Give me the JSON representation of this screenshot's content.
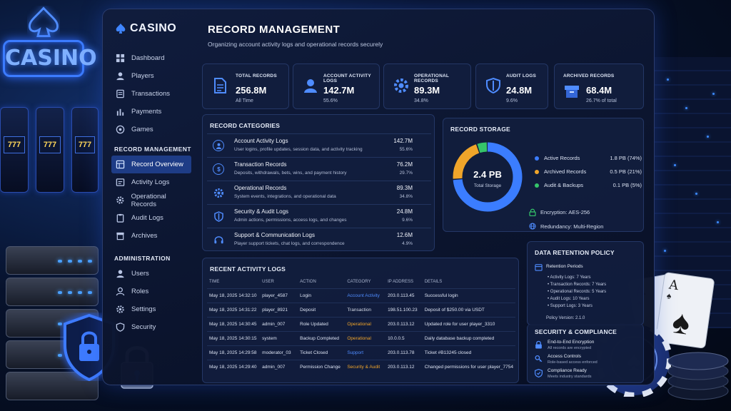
{
  "background": {
    "sign_text": "CASINO",
    "slot_text": "777"
  },
  "brand": {
    "name": "CASINO"
  },
  "sidebar": {
    "main_items": [
      {
        "label": "Dashboard",
        "icon": "dashboard-icon"
      },
      {
        "label": "Players",
        "icon": "user-icon"
      },
      {
        "label": "Transactions",
        "icon": "transactions-icon"
      },
      {
        "label": "Payments",
        "icon": "payments-icon"
      },
      {
        "label": "Games",
        "icon": "games-icon"
      }
    ],
    "record_section": "RECORD MANAGEMENT",
    "record_items": [
      {
        "label": "Record Overview",
        "icon": "grid-icon",
        "active": true
      },
      {
        "label": "Activity Logs",
        "icon": "activity-icon"
      },
      {
        "label": "Operational Records",
        "icon": "gear-icon"
      },
      {
        "label": "Audit Logs",
        "icon": "clipboard-icon"
      },
      {
        "label": "Archives",
        "icon": "archive-icon"
      }
    ],
    "admin_section": "ADMINISTRATION",
    "admin_items": [
      {
        "label": "Users",
        "icon": "user-icon"
      },
      {
        "label": "Roles",
        "icon": "roles-icon"
      },
      {
        "label": "Settings",
        "icon": "gear-icon"
      },
      {
        "label": "Security",
        "icon": "shield-icon"
      }
    ]
  },
  "header": {
    "title": "RECORD MANAGEMENT",
    "subtitle": "Organizing account activity logs and operational records securely"
  },
  "stats": [
    {
      "label": "TOTAL RECORDS",
      "value": "256.8M",
      "sub": "All Time"
    },
    {
      "label": "ACCOUNT ACTIVITY LOGS",
      "value": "142.7M",
      "sub": "55.6%"
    },
    {
      "label": "OPERATIONAL RECORDS",
      "value": "89.3M",
      "sub": "34.8%"
    },
    {
      "label": "AUDIT LOGS",
      "value": "24.8M",
      "sub": "9.6%"
    },
    {
      "label": "ARCHIVED RECORDS",
      "value": "68.4M",
      "sub": "26.7% of total"
    }
  ],
  "categories": {
    "title": "RECORD CATEGORIES",
    "items": [
      {
        "name": "Account Activity Logs",
        "desc": "User logins, profile updates, session data, and activity tracking",
        "value": "142.7M",
        "pct": "55.6%"
      },
      {
        "name": "Transaction Records",
        "desc": "Deposits, withdrawals, bets, wins, and payment history",
        "value": "76.2M",
        "pct": "29.7%"
      },
      {
        "name": "Operational Records",
        "desc": "System events, integrations, and operational data",
        "value": "89.3M",
        "pct": "34.8%"
      },
      {
        "name": "Security & Audit Logs",
        "desc": "Admin actions, permissions, access logs, and changes",
        "value": "24.8M",
        "pct": "9.6%"
      },
      {
        "name": "Support & Communication Logs",
        "desc": "Player support tickets, chat logs, and correspondence",
        "value": "12.6M",
        "pct": "4.9%"
      }
    ]
  },
  "storage": {
    "title": "RECORD STORAGE",
    "total": "2.4 PB",
    "total_label": "Total Storage",
    "segments": [
      {
        "label": "Active Records",
        "value": "1.8 PB (74%)",
        "fraction": 0.74,
        "color": "#3b7dff"
      },
      {
        "label": "Archived Records",
        "value": "0.5 PB (21%)",
        "fraction": 0.21,
        "color": "#f0a52a"
      },
      {
        "label": "Audit & Backups",
        "value": "0.1 PB (5%)",
        "fraction": 0.05,
        "color": "#35c46a"
      }
    ],
    "encryption": "Encryption:  AES-256",
    "redundancy": "Redundancy:  Multi-Region"
  },
  "activity": {
    "title": "RECENT ACTIVITY LOGS",
    "columns": [
      "TIME",
      "USER",
      "ACTION",
      "CATEGORY",
      "IP ADDRESS",
      "DETAILS"
    ],
    "rows": [
      {
        "time": "May 18, 2025 14:32:10",
        "user": "player_4587",
        "action": "Login",
        "category": "Account Activity",
        "cat_color": "#4f8cff",
        "ip": "203.0.113.45",
        "details": "Successful login"
      },
      {
        "time": "May 18, 2025 14:31:22",
        "user": "player_8921",
        "action": "Deposit",
        "category": "Transaction",
        "cat_color": "#d5dbe8",
        "ip": "198.51.100.23",
        "details": "Deposit of $250.00 via USDT"
      },
      {
        "time": "May 18, 2025 14:30:45",
        "user": "admin_007",
        "action": "Role Updated",
        "category": "Operational",
        "cat_color": "#f0a52a",
        "ip": "203.0.113.12",
        "details": "Updated role for user player_3310"
      },
      {
        "time": "May 18, 2025 14:30:15",
        "user": "system",
        "action": "Backup Completed",
        "category": "Operational",
        "cat_color": "#f0a52a",
        "ip": "10.0.0.5",
        "details": "Daily database backup completed"
      },
      {
        "time": "May 18, 2025 14:29:58",
        "user": "moderator_03",
        "action": "Ticket Closed",
        "category": "Support",
        "cat_color": "#4f8cff",
        "ip": "203.0.113.78",
        "details": "Ticket #B13245 closed"
      },
      {
        "time": "May 18, 2025 14:29:40",
        "user": "admin_007",
        "action": "Permission Change",
        "category": "Security & Audit",
        "cat_color": "#f0a52a",
        "ip": "203.0.113.12",
        "details": "Changed permissions for user player_7754"
      }
    ]
  },
  "retention": {
    "title": "DATA RETENTION POLICY",
    "heading": "Retention Periods",
    "items": [
      "Activity Logs: 7 Years",
      "Transaction Records: 7 Years",
      "Operational Records: 5 Years",
      "Audit Logs: 10 Years",
      "Support Logs: 3 Years"
    ],
    "version": "Policy Version: 2.1.0"
  },
  "security": {
    "title": "SECURITY & COMPLIANCE",
    "items": [
      {
        "title": "End-to-End Encryption",
        "desc": "All records are encrypted",
        "icon": "lock-icon"
      },
      {
        "title": "Access Controls",
        "desc": "Role-based access enforced",
        "icon": "key-icon"
      },
      {
        "title": "Compliance Ready",
        "desc": "Meets industry standards",
        "icon": "shield-check-icon"
      }
    ]
  }
}
